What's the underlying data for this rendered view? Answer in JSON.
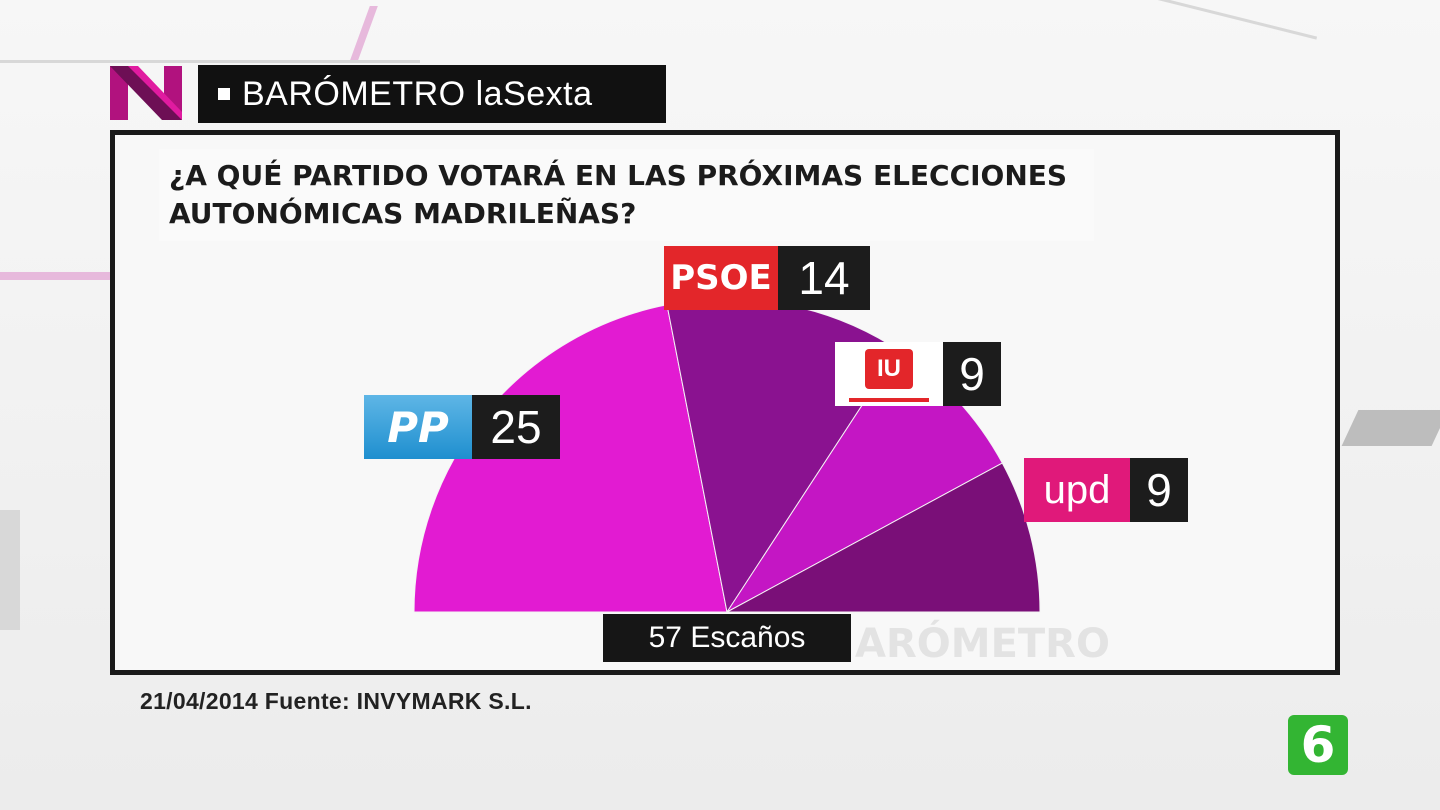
{
  "header": {
    "title": "BARÓMETRO laSexta"
  },
  "chart_data": {
    "type": "pie",
    "title": "¿A QUÉ PARTIDO VOTARÁ EN LAS PRÓXIMAS ELECCIONES AUTONÓMICAS MADRILEÑAS?",
    "subtitle_lines": [
      "¿A QUÉ PARTIDO VOTARÁ EN LAS PRÓXIMAS ELECCIONES",
      "AUTONÓMICAS MADRILEÑAS?"
    ],
    "shape": "semicircle",
    "total_label": "57 Escaños",
    "total": 57,
    "series": [
      {
        "name": "PP",
        "value": 25,
        "color": "#e21bd2"
      },
      {
        "name": "PSOE",
        "value": 14,
        "color": "#8a1290"
      },
      {
        "name": "IU",
        "value": 9,
        "color": "#c416c4"
      },
      {
        "name": "upd",
        "value": 9,
        "color": "#7a0f78"
      }
    ],
    "labels": {
      "pp_logo": "PP",
      "pp_value": "25",
      "psoe_logo": "PSOE",
      "psoe_value": "14",
      "iu_logo": "IU",
      "iu_value": "9",
      "upd_logo": "upd",
      "upd_value": "9"
    }
  },
  "footer": {
    "source": "21/04/2014 Fuente: INVYMARK S.L."
  },
  "watermark": "ARÓMETRO",
  "channel_logo": "6",
  "colors": {
    "accent_pink": "#e21bd2",
    "channel_green": "#33b533"
  }
}
